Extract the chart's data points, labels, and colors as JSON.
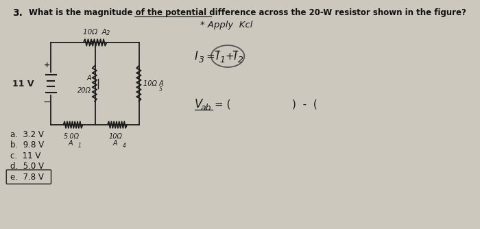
{
  "background_color": "#cdc8be",
  "question_number": "3.",
  "question_text": "What is the magnitude of the potential difference across the 20-W resistor shown in the figure?",
  "answers": [
    "a.  3.2 V",
    "b.  9.8 V",
    "c.  11 V",
    "d.  5.0 V",
    "e.  7.8 V"
  ],
  "note_right": "* Apply  Kcl",
  "circuit_labels": {
    "voltage": "11 V",
    "top_resistor_line1": "10Ω  A",
    "top_resistor_sub": "2",
    "mid_left_label": "A",
    "mid_left_sub": "1",
    "mid_left_r": "20Ω",
    "mid_right_r": "10Ω A",
    "mid_right_sub": "5",
    "bot_left_r": "5.0Ω",
    "bot_left_label": "A",
    "bot_left_sub": "1",
    "bot_right_r": "10Ω",
    "bot_right_label": "A",
    "bot_right_sub": "4"
  }
}
